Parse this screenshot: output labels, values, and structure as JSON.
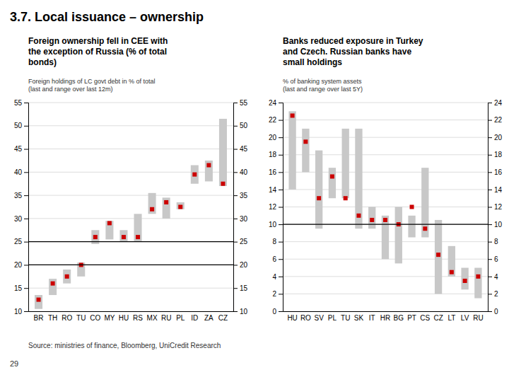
{
  "title": "3.7. Local issuance – ownership",
  "annotations": [
    "Source: ministries of finance, Bloomberg, UniCredit Research",
    "29"
  ],
  "chart_data": [
    {
      "type": "bar",
      "title": [
        "Foreign ownership fell in CEE with",
        "the exception of Russia (% of total",
        "bonds)"
      ],
      "subtitle": [
        "Foreign holdings of LC govt debt in % of total",
        "(last and range over last 12m)"
      ],
      "categories": [
        "BR",
        "TH",
        "RO",
        "TU",
        "CO",
        "MY",
        "HU",
        "RS",
        "MX",
        "RU",
        "PL",
        "ID",
        "ZA",
        "CZ"
      ],
      "series": [
        {
          "type": "range_bar",
          "color": "#c8c8c8",
          "low": [
            10.5,
            13.5,
            16.0,
            17.5,
            24.5,
            25.5,
            25.0,
            25.0,
            31.0,
            30.0,
            32.0,
            37.5,
            38.0,
            37.0
          ],
          "high": [
            13.5,
            17.0,
            19.0,
            20.5,
            27.5,
            29.5,
            27.5,
            31.0,
            35.5,
            34.5,
            33.5,
            41.5,
            42.5,
            51.5
          ]
        },
        {
          "type": "scatter",
          "marker": "square",
          "color": "#cc0000",
          "values": [
            12.5,
            16.0,
            17.5,
            20.0,
            26.0,
            29.0,
            26.0,
            26.0,
            32.0,
            33.5,
            32.5,
            39.5,
            41.5,
            37.5
          ]
        }
      ],
      "reference_lines": [
        20,
        25
      ],
      "ylim": [
        10,
        55
      ],
      "yticks": [
        10,
        15,
        20,
        25,
        30,
        35,
        40,
        45,
        50,
        55
      ],
      "y2lim": [
        10,
        55
      ],
      "y2ticks": [
        10,
        15,
        20,
        25,
        30,
        35,
        40,
        45,
        50,
        55
      ],
      "grid": true
    },
    {
      "type": "bar",
      "title": [
        "Banks reduced exposure in Turkey",
        "and Czech. Russian banks have",
        "small holdings"
      ],
      "subtitle": [
        "% of banking system assets",
        "(last and range over last 5Y)"
      ],
      "categories": [
        "HU",
        "RO",
        "SV",
        "PL",
        "TU",
        "SK",
        "IT",
        "HR",
        "BG",
        "PT",
        "CS",
        "CZ",
        "LT",
        "LV",
        "RU"
      ],
      "series": [
        {
          "type": "range_bar",
          "color": "#c8c8c8",
          "low": [
            14.0,
            16.0,
            9.5,
            13.0,
            13.0,
            9.5,
            9.5,
            6.0,
            5.5,
            8.5,
            8.5,
            2.0,
            4.0,
            2.5,
            1.5
          ],
          "high": [
            23.0,
            21.0,
            18.5,
            16.5,
            21.0,
            21.0,
            12.0,
            11.0,
            12.0,
            11.0,
            16.5,
            10.5,
            7.5,
            5.0,
            5.0
          ]
        },
        {
          "type": "scatter",
          "marker": "square",
          "color": "#cc0000",
          "values": [
            22.5,
            19.5,
            13.0,
            15.5,
            13.0,
            11.0,
            10.5,
            10.5,
            10.0,
            12.0,
            9.5,
            6.5,
            4.5,
            3.5,
            4.0
          ]
        }
      ],
      "reference_lines": [
        10
      ],
      "ylim": [
        0,
        24
      ],
      "yticks": [
        0,
        2,
        4,
        6,
        8,
        10,
        12,
        14,
        16,
        18,
        20,
        22,
        24
      ],
      "y2lim": [
        0,
        24
      ],
      "y2ticks": [
        0,
        2,
        4,
        6,
        8,
        10,
        12,
        14,
        16,
        18,
        20,
        22,
        24
      ],
      "grid": true
    }
  ]
}
